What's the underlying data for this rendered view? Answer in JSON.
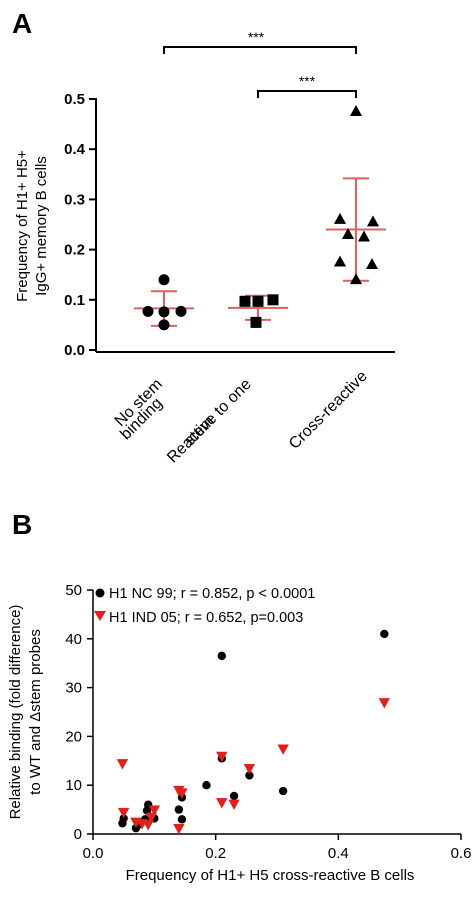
{
  "figure": {
    "panel_a_label": "A",
    "panel_b_label": "B"
  },
  "colors": {
    "axis": "#000000",
    "marker": "#000000",
    "error_bar": "#e06060",
    "red_series": "#e0201c"
  },
  "chart_data": [
    {
      "type": "scatter",
      "panel": "A",
      "ylabel_lines": [
        "Frequency of H1+ H5+",
        "IgG+ memory B cells"
      ],
      "ylim": [
        0,
        0.5
      ],
      "yticks": [
        "0.0",
        "0.1",
        "0.2",
        "0.3",
        "0.4",
        "0.5"
      ],
      "categories": [
        {
          "label_lines": [
            "No stem",
            "binding"
          ],
          "marker": "circle",
          "values": [
            0.14,
            0.077,
            0.077,
            0.05,
            0.076
          ],
          "mean": 0.083,
          "sd_low": 0.048,
          "sd_high": 0.117
        },
        {
          "label_lines": [
            "Reactive to one",
            "stem"
          ],
          "marker": "square",
          "values": [
            0.097,
            0.097,
            0.1,
            0.055
          ],
          "mean": 0.084,
          "sd_low": 0.06,
          "sd_high": 0.108
        },
        {
          "label_lines": [
            "Cross-reactive"
          ],
          "marker": "triangle",
          "values": [
            0.475,
            0.26,
            0.255,
            0.23,
            0.225,
            0.175,
            0.17,
            0.14
          ],
          "mean": 0.24,
          "sd_low": 0.138,
          "sd_high": 0.342
        }
      ],
      "significance": [
        {
          "from": 0,
          "to": 2,
          "label": "***"
        },
        {
          "from": 1,
          "to": 2,
          "label": "***"
        }
      ]
    },
    {
      "type": "scatter",
      "panel": "B",
      "xlabel": "Frequency of H1+ H5 cross-reactive B cells",
      "ylabel_lines": [
        "Relative binding (fold difference)",
        "to WT and Δstem probes"
      ],
      "xlim": [
        0,
        0.6
      ],
      "ylim": [
        0,
        50
      ],
      "xticks": [
        "0.0",
        "0.2",
        "0.4",
        "0.6"
      ],
      "yticks": [
        "0",
        "10",
        "20",
        "30",
        "40",
        "50"
      ],
      "legend_position": "top-left",
      "series": [
        {
          "name": "H1 NC 99; r = 0.852, p < 0.0001",
          "marker": "circle",
          "points": [
            [
              0.048,
              2.2
            ],
            [
              0.05,
              3.2
            ],
            [
              0.07,
              1.2
            ],
            [
              0.075,
              2.0
            ],
            [
              0.085,
              3.0
            ],
            [
              0.088,
              4.8
            ],
            [
              0.09,
              6.0
            ],
            [
              0.1,
              3.2
            ],
            [
              0.14,
              5.0
            ],
            [
              0.145,
              7.5
            ],
            [
              0.145,
              3.0
            ],
            [
              0.185,
              10.0
            ],
            [
              0.21,
              15.5
            ],
            [
              0.21,
              36.5
            ],
            [
              0.23,
              7.8
            ],
            [
              0.255,
              12.0
            ],
            [
              0.31,
              8.8
            ],
            [
              0.475,
              41.0
            ]
          ]
        },
        {
          "name": "H1 IND 05; r = 0.652, p=0.003",
          "marker": "triangle-down",
          "points": [
            [
              0.048,
              14.5
            ],
            [
              0.05,
              4.5
            ],
            [
              0.07,
              2.5
            ],
            [
              0.08,
              2.2
            ],
            [
              0.09,
              2.0
            ],
            [
              0.095,
              3.5
            ],
            [
              0.1,
              5.0
            ],
            [
              0.14,
              9.0
            ],
            [
              0.145,
              8.5
            ],
            [
              0.14,
              1.2
            ],
            [
              0.21,
              16.0
            ],
            [
              0.21,
              6.5
            ],
            [
              0.23,
              6.2
            ],
            [
              0.255,
              13.5
            ],
            [
              0.31,
              17.5
            ],
            [
              0.475,
              27.0
            ]
          ]
        }
      ]
    }
  ]
}
